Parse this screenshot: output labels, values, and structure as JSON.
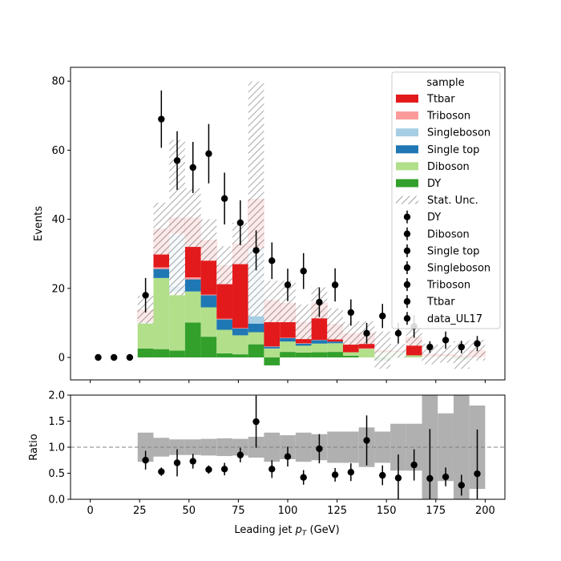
{
  "chart_data": [
    {
      "type": "bar",
      "stacked": true,
      "ylabel": "Events",
      "ylim": [
        -6.5,
        84
      ],
      "xlim": [
        -10,
        210
      ],
      "yticks": [
        0,
        20,
        40,
        60,
        80
      ],
      "bin_width": 8,
      "bin_centers": [
        28,
        36,
        44,
        52,
        60,
        68,
        76,
        84,
        92,
        100,
        108,
        116,
        124,
        132,
        140,
        148,
        156,
        164,
        172,
        180,
        188,
        196
      ],
      "series": [
        {
          "name": "DY",
          "color": "#33a02c",
          "values": [
            2.6,
            2.4,
            2.0,
            10.1,
            6.0,
            1.2,
            0.9,
            3.8,
            -2.3,
            1.6,
            1.4,
            1.5,
            1.6,
            0.5,
            0.0,
            -1.0,
            0.0,
            0.0,
            0.0,
            0.0,
            -0.6,
            0.0
          ]
        },
        {
          "name": "Diboson",
          "color": "#b2df8a",
          "values": [
            7.4,
            20.6,
            17.0,
            9.0,
            8.5,
            6.8,
            5.5,
            3.5,
            2.6,
            3.0,
            2.0,
            2.5,
            2.5,
            1.0,
            2.5,
            1.5,
            1.5,
            0.6,
            0.3,
            0.3,
            0.0,
            0.0
          ]
        },
        {
          "name": "Single top",
          "color": "#1f78b4",
          "values": [
            0.2,
            2.6,
            1.5,
            3.5,
            3.5,
            3.0,
            2.0,
            2.5,
            0.5,
            1.0,
            0.6,
            1.0,
            0.5,
            0.0,
            0.0,
            0.0,
            0.0,
            0.0,
            0.0,
            0.0,
            0.0,
            0.0
          ]
        },
        {
          "name": "Singleboson",
          "color": "#a6cee3",
          "values": [
            0.0,
            0.0,
            15.0,
            0.0,
            0.0,
            0.0,
            0.0,
            21.9,
            0.0,
            0.0,
            0.0,
            0.0,
            0.0,
            0.0,
            0.0,
            0.0,
            0.0,
            0.0,
            0.0,
            0.0,
            0.0,
            0.0
          ]
        },
        {
          "name": "Triboson",
          "color": "#fb9a99",
          "values": [
            0.1,
            0.5,
            0.5,
            0.6,
            0.2,
            0.2,
            0.1,
            0.0,
            0.1,
            0.1,
            0.1,
            0.1,
            0.0,
            0.0,
            0.1,
            0.0,
            0.1,
            0.0,
            0.0,
            0.1,
            0.0,
            0.0
          ]
        },
        {
          "name": "Ttbar",
          "color": "#e31a1c",
          "values": [
            3.5,
            11.2,
            4.5,
            17.3,
            15.8,
            15.5,
            24.5,
            14.2,
            13.4,
            10.1,
            6.2,
            10.7,
            5.1,
            5.5,
            4.6,
            0.6,
            0.3,
            5.3,
            0.7,
            0.6,
            0.6,
            2.1
          ]
        }
      ],
      "stat_unc_totals": [
        13.8,
        37.3,
        40.5,
        40.5,
        34.0,
        26.7,
        33.0,
        45.9,
        16.2,
        16.2,
        10.3,
        15.8,
        9.7,
        7.0,
        7.2,
        2.1,
        1.9,
        5.9,
        1.0,
        1.0,
        0.7,
        2.1
      ],
      "stat_unc_halfwidths": [
        4,
        7.5,
        22.5,
        8.5,
        6,
        5.5,
        6,
        34,
        6,
        6,
        5,
        4.5,
        4.5,
        3.3,
        3.3,
        5.4,
        2,
        2.5,
        3,
        2.5,
        4,
        3
      ],
      "data": {
        "name": "data_UL17",
        "x": [
          4,
          12,
          20,
          28,
          36,
          44,
          52,
          60,
          68,
          76,
          84,
          92,
          100,
          108,
          116,
          124,
          132,
          140,
          148,
          156,
          164,
          172,
          180,
          188,
          196
        ],
        "y": [
          0,
          0,
          0,
          18,
          69,
          57,
          55,
          59,
          46,
          39,
          31,
          28,
          21,
          25,
          16,
          21,
          13,
          7,
          12,
          7,
          9,
          3,
          5,
          3,
          4
        ],
        "yerr": [
          0,
          0,
          0,
          5,
          8.3,
          8.5,
          7.4,
          8.6,
          7.5,
          6.5,
          5.8,
          5.3,
          4.7,
          5.2,
          4.3,
          4.8,
          3.8,
          3,
          3.5,
          3,
          3.3,
          1.7,
          2.5,
          1.8,
          2.2
        ]
      },
      "legend": {
        "title": "sample",
        "placement": "top-right",
        "entries": [
          {
            "label": "Ttbar",
            "kind": "patch",
            "color": "#e31a1c"
          },
          {
            "label": "Triboson",
            "kind": "patch",
            "color": "#fb9a99"
          },
          {
            "label": "Singleboson",
            "kind": "patch",
            "color": "#a6cee3"
          },
          {
            "label": "Single top",
            "kind": "patch",
            "color": "#1f78b4"
          },
          {
            "label": "Diboson",
            "kind": "patch",
            "color": "#b2df8a"
          },
          {
            "label": "DY",
            "kind": "patch",
            "color": "#33a02c"
          },
          {
            "label": "Stat. Unc.",
            "kind": "hatch",
            "color": "#888888"
          },
          {
            "label": "DY",
            "kind": "marker"
          },
          {
            "label": "Diboson",
            "kind": "marker"
          },
          {
            "label": "Single top",
            "kind": "marker"
          },
          {
            "label": "Singleboson",
            "kind": "marker"
          },
          {
            "label": "Triboson",
            "kind": "marker"
          },
          {
            "label": "Ttbar",
            "kind": "marker"
          },
          {
            "label": "data_UL17",
            "kind": "marker"
          }
        ]
      }
    },
    {
      "type": "scatter",
      "ylabel": "Ratio",
      "xlabel": "Leading jet  p_T (GeV)",
      "ylim": [
        0,
        2
      ],
      "xlim": [
        -10,
        210
      ],
      "yticks": [
        "0.0",
        "0.5",
        "1.0",
        "1.5",
        "2.0"
      ],
      "xticks": [
        "0",
        "25",
        "50",
        "75",
        "100",
        "125",
        "150",
        "175",
        "200"
      ],
      "reference_line": 1.0,
      "band_color": "#b0b0b0",
      "band": [
        {
          "x0": 24,
          "x1": 32,
          "lo": 0.72,
          "hi": 1.28
        },
        {
          "x0": 32,
          "x1": 40,
          "lo": 0.82,
          "hi": 1.18
        },
        {
          "x0": 40,
          "x1": 48,
          "lo": 0.85,
          "hi": 1.15
        },
        {
          "x0": 48,
          "x1": 56,
          "lo": 0.85,
          "hi": 1.15
        },
        {
          "x0": 56,
          "x1": 64,
          "lo": 0.84,
          "hi": 1.16
        },
        {
          "x0": 64,
          "x1": 72,
          "lo": 0.83,
          "hi": 1.17
        },
        {
          "x0": 72,
          "x1": 80,
          "lo": 0.84,
          "hi": 1.16
        },
        {
          "x0": 80,
          "x1": 88,
          "lo": 0.8,
          "hi": 1.2
        },
        {
          "x0": 88,
          "x1": 96,
          "lo": 0.72,
          "hi": 1.28
        },
        {
          "x0": 96,
          "x1": 104,
          "lo": 0.77,
          "hi": 1.23
        },
        {
          "x0": 104,
          "x1": 112,
          "lo": 0.72,
          "hi": 1.28
        },
        {
          "x0": 112,
          "x1": 120,
          "lo": 0.75,
          "hi": 1.25
        },
        {
          "x0": 120,
          "x1": 128,
          "lo": 0.7,
          "hi": 1.3
        },
        {
          "x0": 128,
          "x1": 136,
          "lo": 0.7,
          "hi": 1.3
        },
        {
          "x0": 136,
          "x1": 144,
          "lo": 0.62,
          "hi": 1.38
        },
        {
          "x0": 144,
          "x1": 152,
          "lo": 0.7,
          "hi": 1.3
        },
        {
          "x0": 152,
          "x1": 160,
          "lo": 0.55,
          "hi": 1.45
        },
        {
          "x0": 160,
          "x1": 168,
          "lo": 0.55,
          "hi": 1.45
        },
        {
          "x0": 168,
          "x1": 176,
          "lo": 0.0,
          "hi": 2.0
        },
        {
          "x0": 176,
          "x1": 184,
          "lo": 0.35,
          "hi": 1.65
        },
        {
          "x0": 184,
          "x1": 192,
          "lo": 0.0,
          "hi": 2.0
        },
        {
          "x0": 192,
          "x1": 200,
          "lo": 0.2,
          "hi": 1.8
        }
      ],
      "points": {
        "x": [
          28,
          36,
          44,
          52,
          60,
          68,
          76,
          84,
          92,
          100,
          108,
          116,
          124,
          132,
          140,
          148,
          156,
          164,
          172,
          180,
          188,
          196
        ],
        "y": [
          0.75,
          0.53,
          0.7,
          0.73,
          0.57,
          0.58,
          0.85,
          1.49,
          0.58,
          0.82,
          0.42,
          0.97,
          0.47,
          0.52,
          1.13,
          0.46,
          0.41,
          0.66,
          0.4,
          0.43,
          0.27,
          0.49
        ],
        "yerr": [
          0.18,
          0.08,
          0.26,
          0.14,
          0.08,
          0.12,
          0.14,
          0.5,
          0.17,
          0.19,
          0.14,
          0.28,
          0.13,
          0.17,
          0.48,
          0.19,
          0.45,
          0.3,
          0.95,
          0.18,
          0.2,
          0.85
        ]
      }
    }
  ]
}
